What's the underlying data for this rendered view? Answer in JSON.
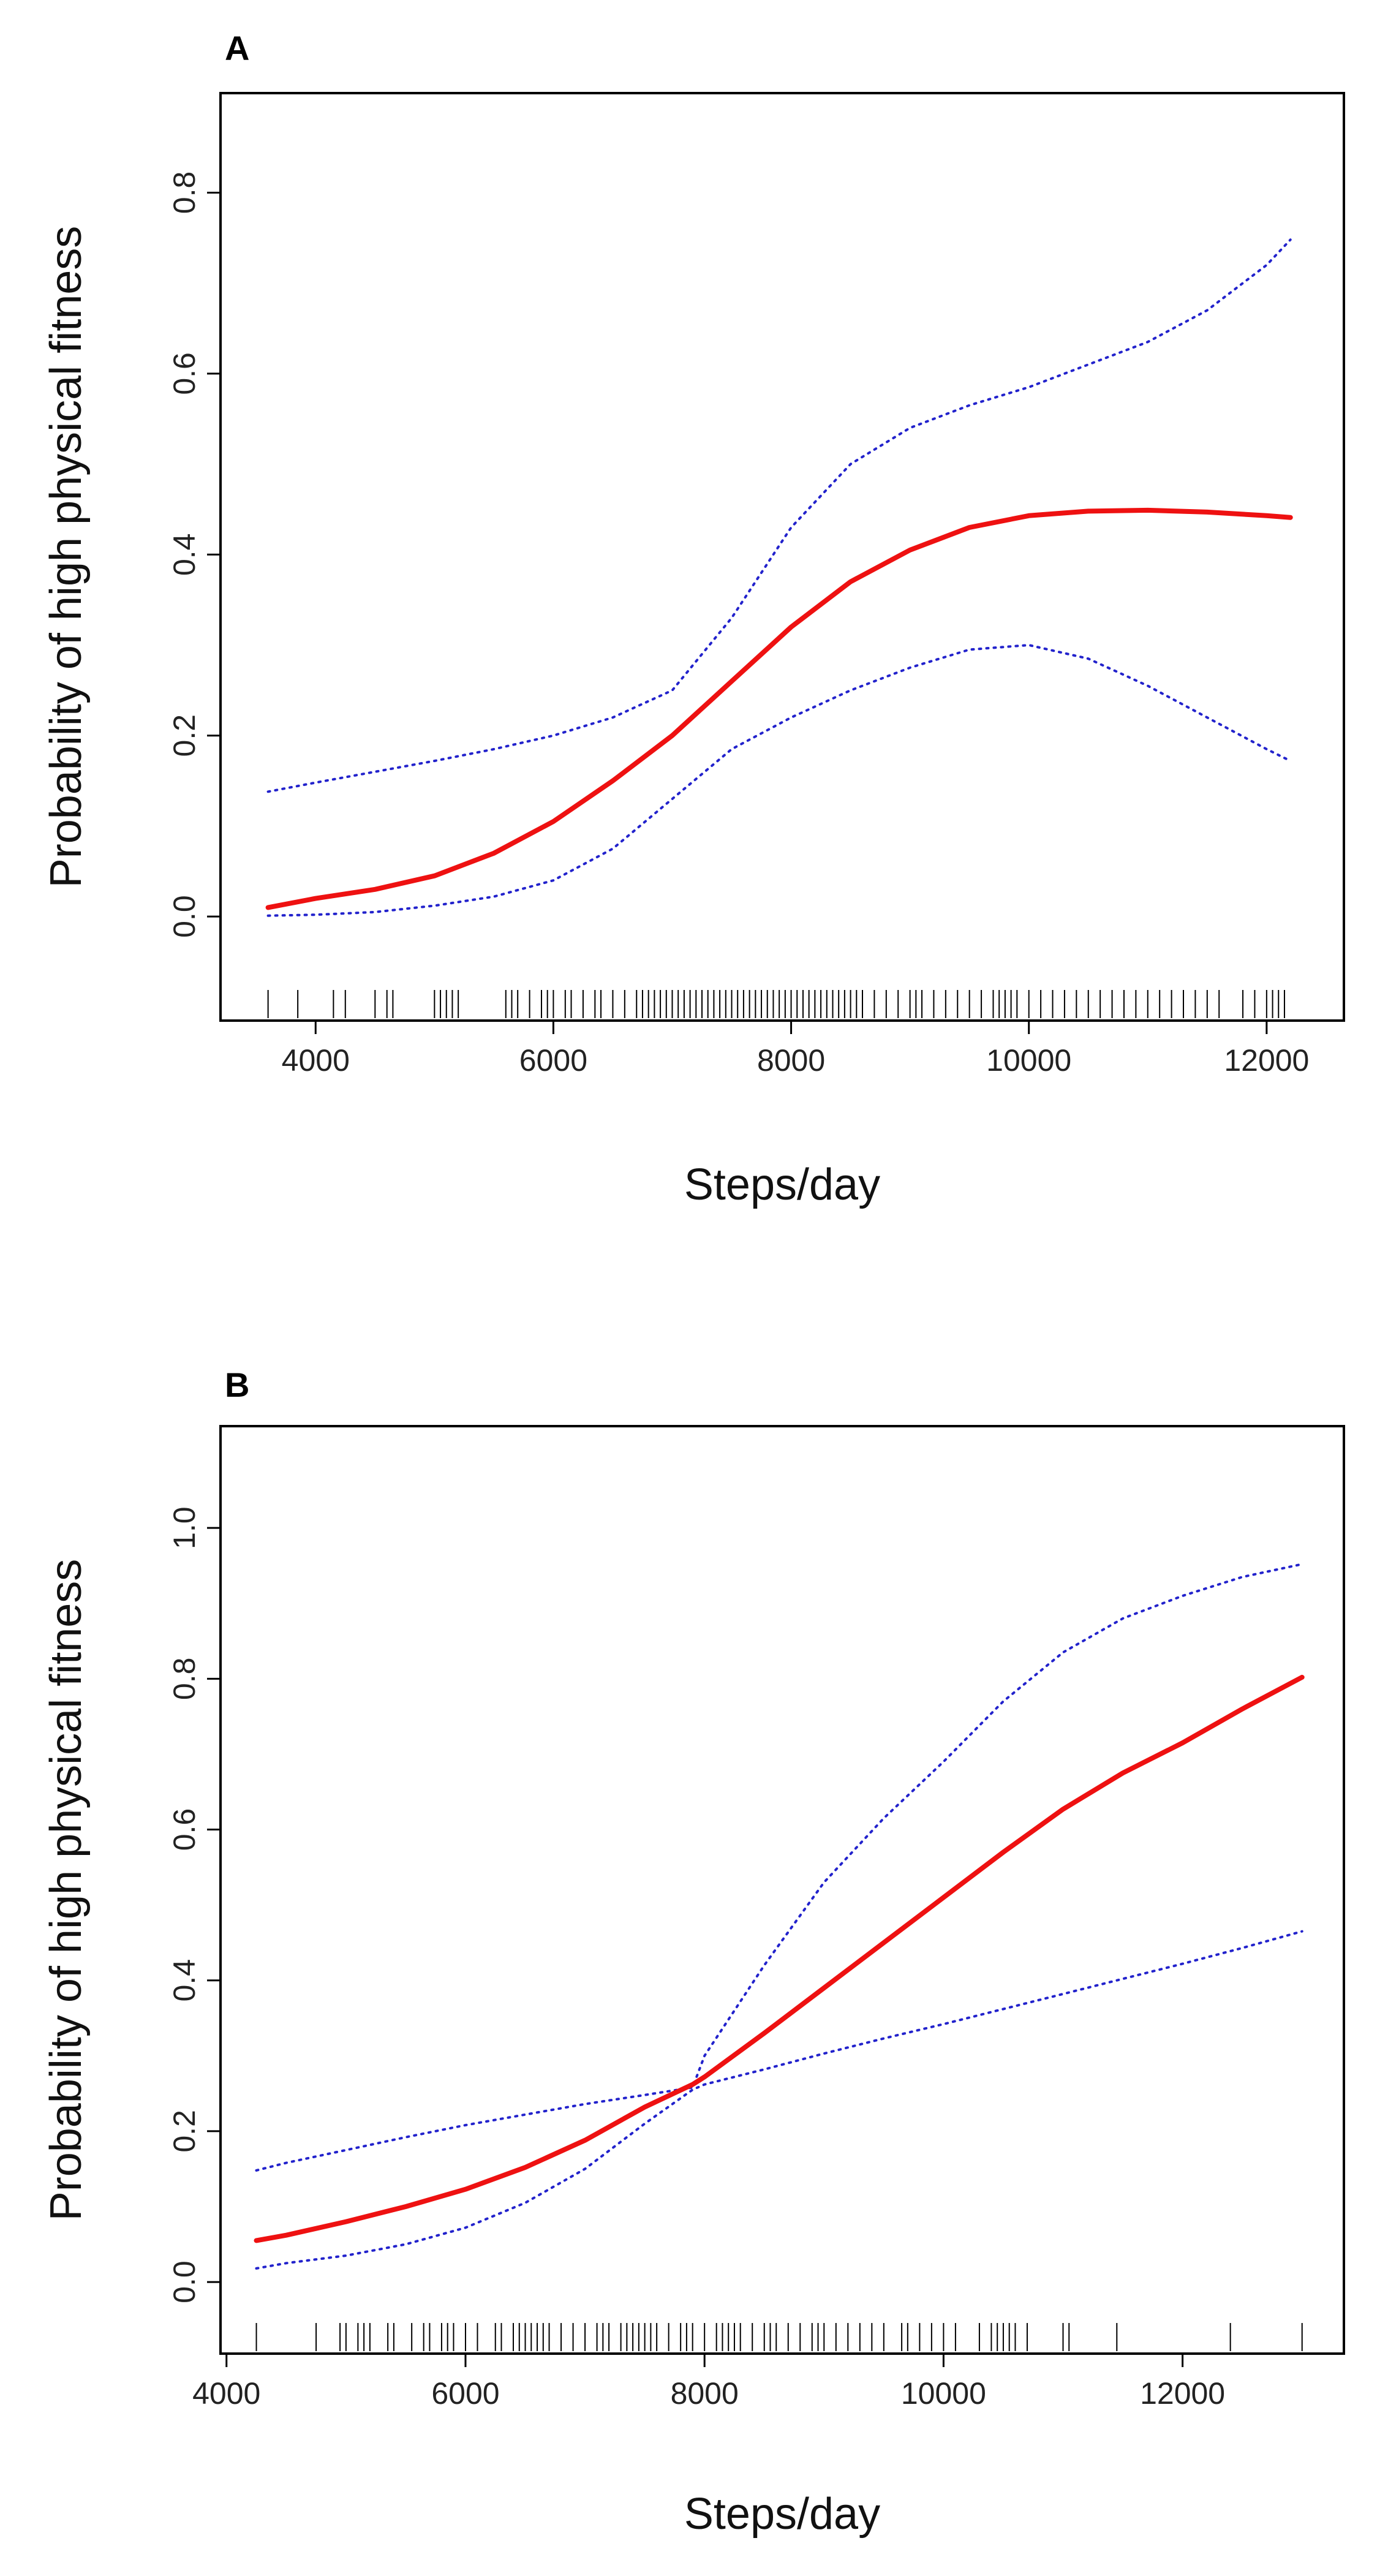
{
  "chart_data": [
    {
      "type": "line",
      "panel": "A",
      "xlabel": "Steps/day",
      "ylabel": "Probability of high physical fitness",
      "xlim": [
        3200,
        12650
      ],
      "ylim": [
        -0.115,
        0.91
      ],
      "xticks": [
        4000,
        6000,
        8000,
        10000,
        12000
      ],
      "yticks": [
        0.0,
        0.2,
        0.4,
        0.6,
        0.8
      ],
      "xtick_labels": [
        "4000",
        "6000",
        "8000",
        "10000",
        "12000"
      ],
      "ytick_labels": [
        "0.0",
        "0.2",
        "0.4",
        "0.6",
        "0.8"
      ],
      "x": [
        3600,
        4000,
        4500,
        5000,
        5500,
        6000,
        6500,
        7000,
        7500,
        8000,
        8500,
        9000,
        9500,
        10000,
        10500,
        11000,
        11500,
        12000,
        12200
      ],
      "series": [
        {
          "name": "fit",
          "style": "solid-red",
          "values": [
            0.01,
            0.02,
            0.03,
            0.045,
            0.07,
            0.105,
            0.15,
            0.2,
            0.26,
            0.32,
            0.37,
            0.405,
            0.43,
            0.443,
            0.448,
            0.449,
            0.447,
            0.443,
            0.441
          ]
        },
        {
          "name": "upper",
          "style": "dotted-blue",
          "values": [
            0.138,
            0.148,
            0.16,
            0.172,
            0.185,
            0.2,
            0.22,
            0.25,
            0.33,
            0.43,
            0.5,
            0.54,
            0.565,
            0.585,
            0.61,
            0.635,
            0.67,
            0.72,
            0.748
          ]
        },
        {
          "name": "lower",
          "style": "dotted-blue",
          "values": [
            0.001,
            0.002,
            0.005,
            0.012,
            0.022,
            0.04,
            0.075,
            0.13,
            0.185,
            0.22,
            0.25,
            0.275,
            0.295,
            0.3,
            0.285,
            0.255,
            0.22,
            0.185,
            0.172
          ]
        }
      ],
      "rug": [
        3600,
        3850,
        4150,
        4250,
        4500,
        4600,
        4650,
        5000,
        5050,
        5100,
        5150,
        5200,
        5600,
        5650,
        5700,
        5800,
        5900,
        5950,
        6000,
        6100,
        6150,
        6250,
        6350,
        6400,
        6500,
        6600,
        6700,
        6750,
        6800,
        6850,
        6900,
        6950,
        7000,
        7050,
        7100,
        7150,
        7200,
        7250,
        7300,
        7350,
        7400,
        7450,
        7500,
        7550,
        7600,
        7650,
        7700,
        7750,
        7800,
        7850,
        7900,
        7950,
        8000,
        8050,
        8100,
        8150,
        8200,
        8250,
        8300,
        8350,
        8400,
        8450,
        8500,
        8550,
        8600,
        8700,
        8800,
        8900,
        9000,
        9050,
        9100,
        9200,
        9300,
        9400,
        9500,
        9600,
        9700,
        9750,
        9800,
        9850,
        9900,
        10000,
        10100,
        10200,
        10300,
        10400,
        10500,
        10600,
        10700,
        10800,
        10900,
        11000,
        11100,
        11200,
        11300,
        11400,
        11500,
        11600,
        11800,
        11900,
        12000,
        12050,
        12100,
        12150
      ]
    },
    {
      "type": "line",
      "panel": "B",
      "xlabel": "Steps/day",
      "ylabel": "Probability of high physical fitness",
      "xlim": [
        3950,
        13350
      ],
      "ylim": [
        -0.095,
        1.135
      ],
      "xticks": [
        4000,
        6000,
        8000,
        10000,
        12000
      ],
      "yticks": [
        0.0,
        0.2,
        0.4,
        0.6,
        0.8,
        1.0
      ],
      "xtick_labels": [
        "4000",
        "6000",
        "8000",
        "10000",
        "12000"
      ],
      "ytick_labels": [
        "0.0",
        "0.2",
        "0.4",
        "0.6",
        "0.8",
        "1.0"
      ],
      "x": [
        4250,
        4500,
        5000,
        5500,
        6000,
        6500,
        7000,
        7500,
        7900,
        8000,
        8500,
        9000,
        9500,
        10000,
        10500,
        11000,
        11500,
        12000,
        12500,
        13000
      ],
      "series": [
        {
          "name": "fit",
          "style": "solid-red",
          "values": [
            0.055,
            0.062,
            0.08,
            0.1,
            0.123,
            0.152,
            0.188,
            0.232,
            0.262,
            0.272,
            0.33,
            0.39,
            0.45,
            0.51,
            0.57,
            0.627,
            0.675,
            0.715,
            0.76,
            0.802
          ]
        },
        {
          "name": "upper",
          "style": "dotted-blue",
          "values": [
            0.148,
            0.158,
            0.175,
            0.192,
            0.208,
            0.222,
            0.236,
            0.248,
            0.258,
            0.3,
            0.42,
            0.53,
            0.615,
            0.69,
            0.77,
            0.835,
            0.88,
            0.91,
            0.935,
            0.952
          ]
        },
        {
          "name": "lower",
          "style": "dotted-blue",
          "values": [
            0.018,
            0.025,
            0.035,
            0.05,
            0.072,
            0.105,
            0.15,
            0.21,
            0.255,
            0.262,
            0.282,
            0.303,
            0.323,
            0.342,
            0.362,
            0.382,
            0.402,
            0.422,
            0.443,
            0.465
          ]
        }
      ],
      "rug": [
        4250,
        4750,
        4950,
        5000,
        5100,
        5150,
        5200,
        5350,
        5400,
        5550,
        5650,
        5700,
        5800,
        5850,
        5900,
        6000,
        6100,
        6250,
        6300,
        6400,
        6450,
        6500,
        6550,
        6600,
        6650,
        6700,
        6800,
        6900,
        7000,
        7100,
        7150,
        7200,
        7300,
        7350,
        7400,
        7450,
        7500,
        7550,
        7600,
        7700,
        7800,
        7850,
        7900,
        8000,
        8100,
        8150,
        8200,
        8250,
        8300,
        8400,
        8500,
        8550,
        8600,
        8700,
        8800,
        8900,
        8950,
        9000,
        9100,
        9200,
        9300,
        9400,
        9500,
        9650,
        9700,
        9800,
        9900,
        10000,
        10100,
        10300,
        10400,
        10450,
        10500,
        10550,
        10600,
        10700,
        11000,
        11050,
        11450,
        12400,
        13000
      ]
    }
  ]
}
